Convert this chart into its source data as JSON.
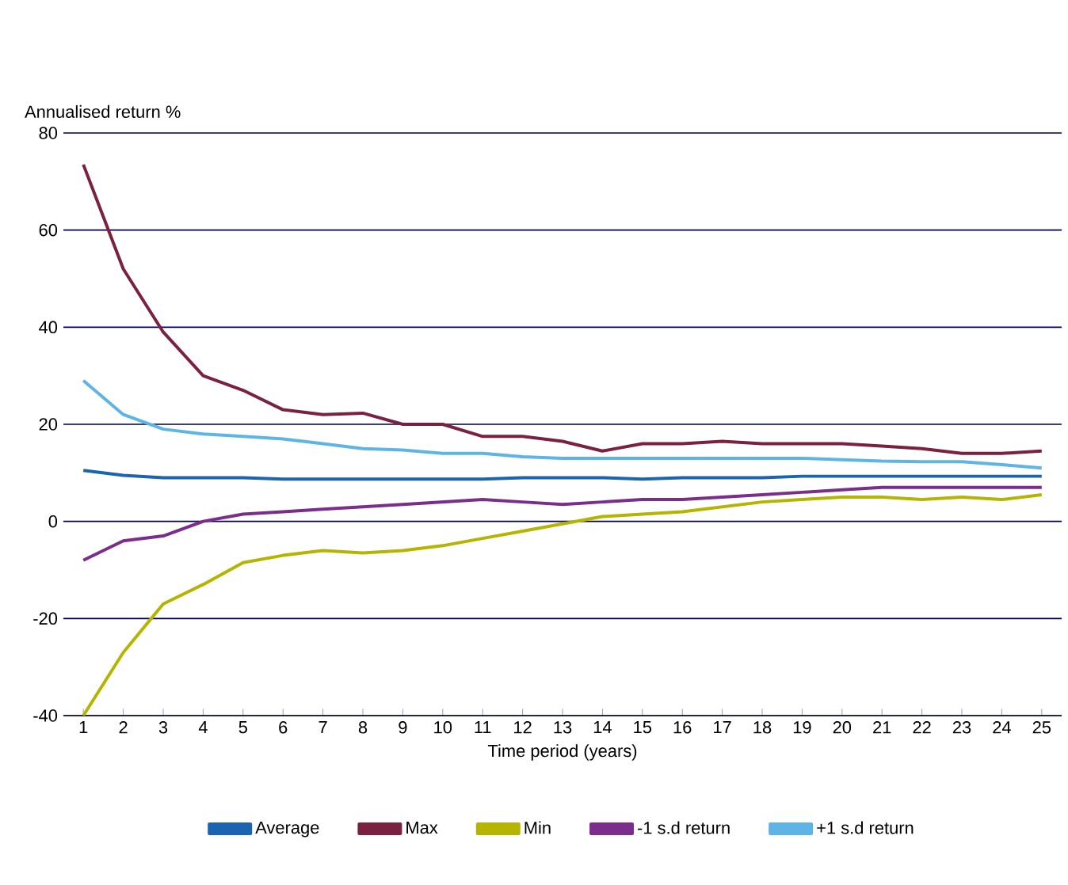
{
  "chart_data": {
    "type": "line",
    "ylabel": "Annualised return %",
    "xlabel": "Time period (years)",
    "categories": [
      "1",
      "2",
      "3",
      "4",
      "5",
      "6",
      "7",
      "8",
      "9",
      "10",
      "11",
      "12",
      "13",
      "14",
      "15",
      "16",
      "17",
      "18",
      "19",
      "20",
      "21",
      "22",
      "23",
      "24",
      "25"
    ],
    "ylim": [
      -40,
      80
    ],
    "yticks": [
      -40,
      -20,
      0,
      20,
      40,
      60,
      80
    ],
    "grid": "y",
    "legend": "bottom",
    "marker": "none",
    "line_style": "solid",
    "series": [
      {
        "name": "Average",
        "color": "#1a64b0",
        "values": [
          10.5,
          9.5,
          9,
          9,
          9,
          8.7,
          8.7,
          8.7,
          8.7,
          8.7,
          8.7,
          9,
          9,
          9,
          8.7,
          9,
          9,
          9,
          9.3,
          9.3,
          9.3,
          9.3,
          9.3,
          9.3,
          9.3
        ]
      },
      {
        "name": "Max",
        "color": "#7a2040",
        "values": [
          73.5,
          52,
          39,
          30,
          27,
          23,
          22,
          22.3,
          20,
          20,
          17.5,
          17.5,
          16.5,
          14.5,
          16,
          16,
          16.5,
          16,
          16,
          16,
          15.5,
          15,
          14,
          14,
          14.5
        ]
      },
      {
        "name": "Min",
        "color": "#b5b400",
        "values": [
          -40,
          -27,
          -17,
          -13,
          -8.5,
          -7,
          -6,
          -6.5,
          -6,
          -5,
          -3.5,
          -2,
          -0.5,
          1,
          1.5,
          2,
          3,
          4,
          4.5,
          5,
          5,
          4.5,
          5,
          4.5,
          5.5
        ]
      },
      {
        "name": "-1 s.d return",
        "color": "#7b2d8b",
        "values": [
          -8,
          -4,
          -3,
          0,
          1.5,
          2,
          2.5,
          3,
          3.5,
          4,
          4.5,
          4,
          3.5,
          4,
          4.5,
          4.5,
          5,
          5.5,
          6,
          6.5,
          7,
          7,
          7,
          7,
          7
        ]
      },
      {
        "name": "+1 s.d return",
        "color": "#5fb4e6",
        "values": [
          29,
          22,
          19,
          18,
          17.5,
          17,
          16,
          15,
          14.7,
          14,
          14,
          13.3,
          13,
          13,
          13,
          13,
          13,
          13,
          13,
          12.7,
          12.4,
          12.3,
          12.3,
          11.7,
          11
        ]
      }
    ]
  }
}
